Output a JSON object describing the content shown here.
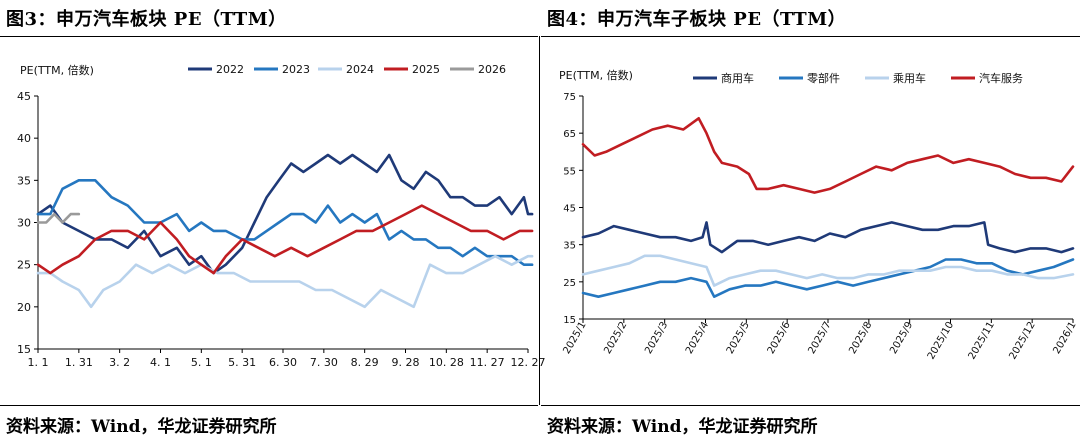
{
  "figures": [
    {
      "title": "图3：申万汽车板块 PE（TTM）",
      "source": "资料来源：Wind，华龙证券研究所"
    },
    {
      "title": "图4：申万汽车子板块 PE（TTM）",
      "source": "资料来源：Wind，华龙证券研究所"
    }
  ],
  "chart_data": [
    {
      "type": "line",
      "ylabel": "PE(TTM, 倍数)",
      "ylim": [
        15,
        45
      ],
      "yticks": [
        15,
        20,
        25,
        30,
        35,
        40,
        45
      ],
      "xlim": [
        0,
        12
      ],
      "x_tick_labels": [
        "1. 1",
        "1. 31",
        "3. 2",
        "4. 1",
        "5. 1",
        "5. 31",
        "6. 30",
        "7. 30",
        "8. 29",
        "9. 28",
        "10. 28",
        "11. 27",
        "12. 27"
      ],
      "legend": "top",
      "series": [
        {
          "name": "2022",
          "color": "#1f3a78",
          "x": [
            0,
            0.3,
            0.6,
            1,
            1.4,
            1.8,
            2.2,
            2.6,
            3,
            3.4,
            3.7,
            4,
            4.3,
            4.6,
            5,
            5.3,
            5.6,
            5.9,
            6.2,
            6.5,
            6.8,
            7.1,
            7.4,
            7.7,
            8,
            8.3,
            8.6,
            8.9,
            9.2,
            9.5,
            9.8,
            10.1,
            10.4,
            10.7,
            11,
            11.3,
            11.6,
            11.9,
            12,
            12.1
          ],
          "values": [
            31,
            32,
            30,
            29,
            28,
            28,
            27,
            29,
            26,
            27,
            25,
            26,
            24,
            25,
            27,
            30,
            33,
            35,
            37,
            36,
            37,
            38,
            37,
            38,
            37,
            36,
            38,
            35,
            34,
            36,
            35,
            33,
            33,
            32,
            32,
            33,
            31,
            33,
            31,
            31
          ]
        },
        {
          "name": "2023",
          "color": "#2577c0",
          "x": [
            0,
            0.3,
            0.6,
            1,
            1.4,
            1.8,
            2.2,
            2.6,
            3,
            3.4,
            3.7,
            4,
            4.3,
            4.6,
            5,
            5.3,
            5.6,
            5.9,
            6.2,
            6.5,
            6.8,
            7.1,
            7.4,
            7.7,
            8,
            8.3,
            8.6,
            8.9,
            9.2,
            9.5,
            9.8,
            10.1,
            10.4,
            10.7,
            11,
            11.3,
            11.6,
            11.9,
            12,
            12.1
          ],
          "values": [
            31,
            31,
            34,
            35,
            35,
            33,
            32,
            30,
            30,
            31,
            29,
            30,
            29,
            29,
            28,
            28,
            29,
            30,
            31,
            31,
            30,
            32,
            30,
            31,
            30,
            31,
            28,
            29,
            28,
            28,
            27,
            27,
            26,
            27,
            26,
            26,
            26,
            25,
            25,
            25
          ]
        },
        {
          "name": "2024",
          "color": "#b8d2ec",
          "x": [
            0,
            0.3,
            0.6,
            1,
            1.3,
            1.6,
            2,
            2.4,
            2.8,
            3.2,
            3.6,
            4,
            4.4,
            4.8,
            5.2,
            5.6,
            6,
            6.4,
            6.8,
            7.2,
            7.6,
            8,
            8.4,
            8.8,
            9.2,
            9.6,
            10,
            10.4,
            10.8,
            11.2,
            11.6,
            12,
            12.1
          ],
          "values": [
            24,
            24,
            23,
            22,
            20,
            22,
            23,
            25,
            24,
            25,
            24,
            25,
            24,
            24,
            23,
            23,
            23,
            23,
            22,
            22,
            21,
            20,
            22,
            21,
            20,
            25,
            24,
            24,
            25,
            26,
            25,
            26,
            26
          ]
        },
        {
          "name": "2025",
          "color": "#c11d22",
          "x": [
            0,
            0.3,
            0.6,
            1,
            1.4,
            1.8,
            2.2,
            2.6,
            3,
            3.4,
            3.7,
            4,
            4.3,
            4.6,
            5,
            5.4,
            5.8,
            6.2,
            6.6,
            7,
            7.4,
            7.8,
            8.2,
            8.6,
            9,
            9.4,
            9.8,
            10.2,
            10.6,
            11,
            11.4,
            11.8,
            12,
            12.1
          ],
          "values": [
            25,
            24,
            25,
            26,
            28,
            29,
            29,
            28,
            30,
            28,
            26,
            25,
            24,
            26,
            28,
            27,
            26,
            27,
            26,
            27,
            28,
            29,
            29,
            30,
            31,
            32,
            31,
            30,
            29,
            29,
            28,
            29,
            29,
            29
          ]
        },
        {
          "name": "2026",
          "color": "#9a9a9a",
          "x": [
            0,
            0.2,
            0.4,
            0.6,
            0.8,
            1
          ],
          "values": [
            30,
            30,
            31,
            30,
            31,
            31
          ]
        }
      ]
    },
    {
      "type": "line",
      "ylabel": "PE(TTM, 倍数)",
      "ylim": [
        15,
        75
      ],
      "yticks": [
        15,
        25,
        35,
        45,
        55,
        65,
        75
      ],
      "xlim": [
        0,
        12.7
      ],
      "x_tick_labels": [
        "2025/1",
        "2025/2",
        "2025/3",
        "2025/4",
        "2025/5",
        "2025/6",
        "2025/7",
        "2025/8",
        "2025/9",
        "2025/10",
        "2025/11",
        "2025/12",
        "2026/1"
      ],
      "legend": "top",
      "series": [
        {
          "name": "商用车",
          "color": "#1f3a78",
          "x": [
            0,
            0.4,
            0.8,
            1.2,
            1.6,
            2,
            2.4,
            2.8,
            3.1,
            3.2,
            3.3,
            3.6,
            4,
            4.4,
            4.8,
            5.2,
            5.6,
            6,
            6.4,
            6.8,
            7.2,
            7.6,
            8,
            8.4,
            8.8,
            9.2,
            9.6,
            10,
            10.4,
            10.5,
            10.8,
            11.2,
            11.6,
            12,
            12.4,
            12.7
          ],
          "values": [
            37,
            38,
            40,
            39,
            38,
            37,
            37,
            36,
            37,
            41,
            35,
            33,
            36,
            36,
            35,
            36,
            37,
            36,
            38,
            37,
            39,
            40,
            41,
            40,
            39,
            39,
            40,
            40,
            41,
            35,
            34,
            33,
            34,
            34,
            33,
            34
          ]
        },
        {
          "name": "零部件",
          "color": "#2577c0",
          "x": [
            0,
            0.4,
            0.8,
            1.2,
            1.6,
            2,
            2.4,
            2.8,
            3.2,
            3.4,
            3.8,
            4.2,
            4.6,
            5,
            5.4,
            5.8,
            6.2,
            6.6,
            7,
            7.4,
            7.8,
            8.2,
            8.6,
            9,
            9.4,
            9.8,
            10.2,
            10.6,
            11,
            11.4,
            11.8,
            12.2,
            12.7
          ],
          "values": [
            22,
            21,
            22,
            23,
            24,
            25,
            25,
            26,
            25,
            21,
            23,
            24,
            24,
            25,
            24,
            23,
            24,
            25,
            24,
            25,
            26,
            27,
            28,
            29,
            31,
            31,
            30,
            30,
            28,
            27,
            28,
            29,
            31
          ]
        },
        {
          "name": "乘用车",
          "color": "#b8d2ec",
          "x": [
            0,
            0.4,
            0.8,
            1.2,
            1.6,
            2,
            2.4,
            2.8,
            3.2,
            3.4,
            3.8,
            4.2,
            4.6,
            5,
            5.4,
            5.8,
            6.2,
            6.6,
            7,
            7.4,
            7.8,
            8.2,
            8.6,
            9,
            9.4,
            9.8,
            10.2,
            10.6,
            11,
            11.4,
            11.8,
            12.2,
            12.7
          ],
          "values": [
            27,
            28,
            29,
            30,
            32,
            32,
            31,
            30,
            29,
            24,
            26,
            27,
            28,
            28,
            27,
            26,
            27,
            26,
            26,
            27,
            27,
            28,
            28,
            28,
            29,
            29,
            28,
            28,
            27,
            27,
            26,
            26,
            27
          ]
        },
        {
          "name": "汽车服务",
          "color": "#c11d22",
          "x": [
            0,
            0.3,
            0.6,
            1,
            1.4,
            1.8,
            2.2,
            2.6,
            3,
            3.2,
            3.4,
            3.6,
            4,
            4.3,
            4.5,
            4.8,
            5.2,
            5.6,
            6,
            6.4,
            6.8,
            7.2,
            7.6,
            8,
            8.4,
            8.8,
            9.2,
            9.6,
            10,
            10.4,
            10.8,
            11.2,
            11.6,
            12,
            12.4,
            12.7
          ],
          "values": [
            62,
            59,
            60,
            62,
            64,
            66,
            67,
            66,
            69,
            65,
            60,
            57,
            56,
            54,
            50,
            50,
            51,
            50,
            49,
            50,
            52,
            54,
            56,
            55,
            57,
            58,
            59,
            57,
            58,
            57,
            56,
            54,
            53,
            53,
            52,
            56
          ]
        }
      ]
    }
  ]
}
